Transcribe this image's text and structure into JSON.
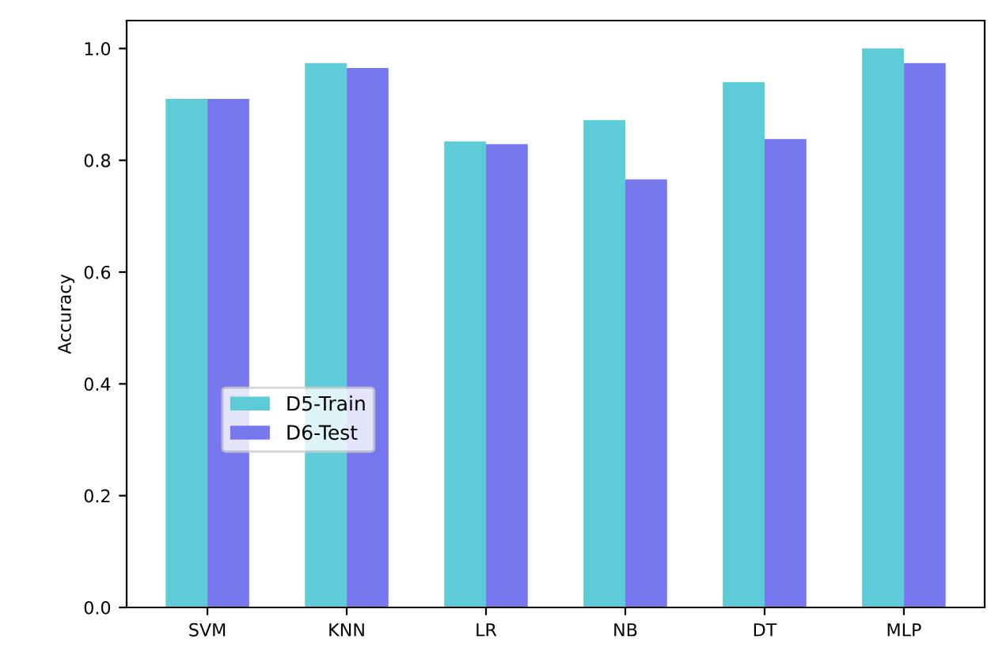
{
  "chart_data": {
    "type": "bar",
    "ylabel": "Accuracy",
    "categories": [
      "SVM",
      "KNN",
      "LR",
      "NB",
      "DT",
      "MLP"
    ],
    "series": [
      {
        "name": "D5-Train",
        "color": "#5ecbd8",
        "values": [
          0.91,
          0.974,
          0.834,
          0.872,
          0.94,
          1.0
        ]
      },
      {
        "name": "D6-Test",
        "color": "#7878ee",
        "values": [
          0.91,
          0.965,
          0.829,
          0.766,
          0.838,
          0.974
        ]
      }
    ],
    "ylim": [
      0,
      1.05
    ],
    "yticks": [
      {
        "value": 0,
        "label": "0.0"
      },
      0.2,
      0.4,
      0.6,
      0.8,
      {
        "value": 1,
        "label": "1.0"
      }
    ],
    "grid": false,
    "legend": "left"
  }
}
